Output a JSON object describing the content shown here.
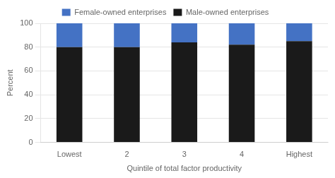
{
  "chart_data": {
    "type": "bar",
    "stacked": true,
    "categories": [
      "Lowest",
      "2",
      "3",
      "4",
      "Highest"
    ],
    "series": [
      {
        "name": "Male-owned enterprises",
        "color": "#1a1a1a",
        "values": [
          80,
          80,
          84,
          82,
          85
        ]
      },
      {
        "name": "Female-owned enterprises",
        "color": "#4472c4",
        "values": [
          20,
          20,
          16,
          18,
          15
        ]
      }
    ],
    "xlabel": "Quintile of total factor productivity",
    "ylabel": "Percent",
    "ylim": [
      0,
      100
    ],
    "yticks": [
      0,
      20,
      40,
      60,
      80,
      100
    ],
    "grid": true,
    "legend": "top"
  }
}
